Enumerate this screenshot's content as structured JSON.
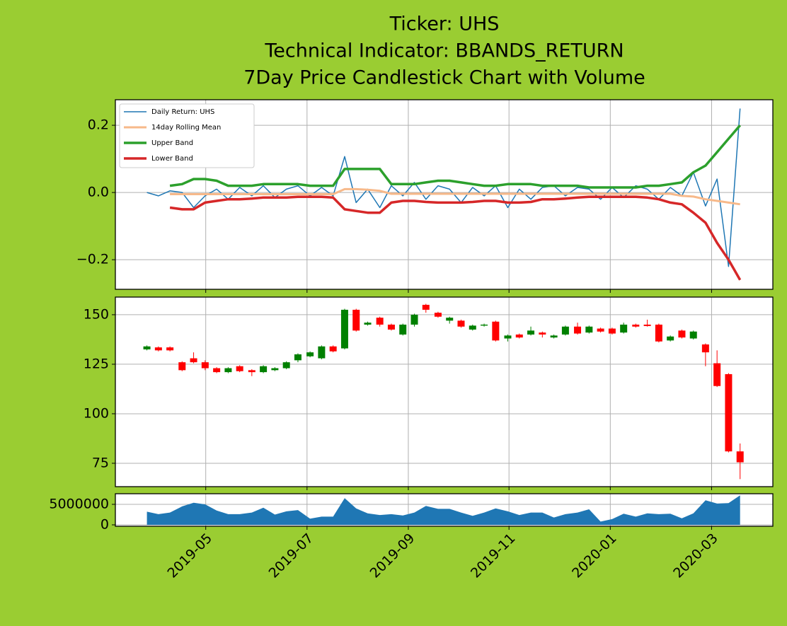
{
  "chart_data": [
    {
      "type": "line",
      "title": [
        "Ticker: UHS",
        "Technical Indicator: BBANDS_RETURN",
        "7Day Price Candlestick Chart with Volume"
      ],
      "x": [
        2019.236,
        2019.255,
        2019.274,
        2019.294,
        2019.313,
        2019.332,
        2019.351,
        2019.37,
        2019.389,
        2019.409,
        2019.428,
        2019.447,
        2019.466,
        2019.485,
        2019.505,
        2019.524,
        2019.543,
        2019.562,
        2019.581,
        2019.6,
        2019.62,
        2019.639,
        2019.658,
        2019.677,
        2019.696,
        2019.716,
        2019.735,
        2019.754,
        2019.773,
        2019.792,
        2019.811,
        2019.831,
        2019.85,
        2019.869,
        2019.888,
        2019.907,
        2019.926,
        2019.946,
        2019.965,
        2019.984,
        2020.003,
        2020.022,
        2020.042,
        2020.061,
        2020.08,
        2020.099,
        2020.118,
        2020.137,
        2020.157,
        2020.176,
        2020.195,
        2020.214
      ],
      "xlim": [
        2019.184,
        2020.268
      ],
      "ylim": [
        -0.288,
        0.276
      ],
      "yticks": [
        {
          "value": -0.2,
          "label": "−0.2"
        },
        {
          "value": 0,
          "label": "0.0"
        },
        {
          "value": 0.2,
          "label": "0.2"
        }
      ],
      "grid": true,
      "legend": "upper left",
      "series": [
        {
          "name": "Daily Return: UHS",
          "color": "#1f77b4",
          "width": 1.5,
          "values": [
            0,
            -0.01,
            0.005,
            0,
            -0.045,
            -0.01,
            0.01,
            -0.02,
            0.015,
            -0.01,
            0.02,
            -0.015,
            0.01,
            0.02,
            -0.01,
            0.015,
            -0.01,
            0.107,
            -0.03,
            0.01,
            -0.045,
            0.02,
            -0.01,
            0.03,
            -0.02,
            0.02,
            0.01,
            -0.03,
            0.015,
            -0.01,
            0.02,
            -0.045,
            0.01,
            -0.02,
            0.015,
            0.02,
            -0.01,
            0.015,
            0.01,
            -0.02,
            0.015,
            -0.015,
            0.02,
            0.01,
            -0.02,
            0.015,
            -0.01,
            0.06,
            -0.04,
            0.04,
            -0.22,
            0.25
          ]
        },
        {
          "name": "14day Rolling Mean",
          "color": "#f7b98a",
          "width": 3,
          "values": [
            null,
            null,
            -0.005,
            -0.005,
            -0.005,
            -0.005,
            -0.005,
            -0.005,
            -0.005,
            -0.005,
            -0.005,
            -0.005,
            -0.005,
            -0.005,
            -0.005,
            -0.005,
            -0.005,
            0.01,
            0.01,
            0.008,
            0.005,
            -0.004,
            -0.004,
            -0.004,
            -0.004,
            -0.004,
            -0.004,
            -0.004,
            -0.004,
            -0.004,
            -0.004,
            -0.004,
            -0.004,
            -0.004,
            -0.004,
            -0.004,
            -0.004,
            -0.004,
            -0.004,
            -0.004,
            -0.004,
            -0.004,
            -0.004,
            -0.004,
            -0.004,
            -0.004,
            -0.01,
            -0.012,
            -0.02,
            -0.025,
            -0.03,
            -0.035
          ]
        },
        {
          "name": "Upper Band",
          "color": "#2ca02c",
          "width": 3.5,
          "values": [
            null,
            null,
            0.02,
            0.025,
            0.04,
            0.04,
            0.035,
            0.02,
            0.02,
            0.02,
            0.025,
            0.025,
            0.025,
            0.025,
            0.02,
            0.02,
            0.02,
            0.07,
            0.07,
            0.07,
            0.07,
            0.025,
            0.025,
            0.025,
            0.03,
            0.035,
            0.035,
            0.03,
            0.025,
            0.02,
            0.02,
            0.025,
            0.025,
            0.025,
            0.02,
            0.02,
            0.02,
            0.02,
            0.015,
            0.015,
            0.015,
            0.015,
            0.015,
            0.02,
            0.02,
            0.025,
            0.03,
            0.06,
            0.08,
            0.12,
            0.16,
            0.2
          ]
        },
        {
          "name": "Lower Band",
          "color": "#d62728",
          "width": 3.5,
          "values": [
            null,
            null,
            -0.045,
            -0.05,
            -0.05,
            -0.03,
            -0.025,
            -0.02,
            -0.02,
            -0.018,
            -0.015,
            -0.015,
            -0.015,
            -0.013,
            -0.013,
            -0.013,
            -0.015,
            -0.05,
            -0.055,
            -0.06,
            -0.06,
            -0.03,
            -0.025,
            -0.025,
            -0.028,
            -0.03,
            -0.03,
            -0.03,
            -0.028,
            -0.025,
            -0.025,
            -0.03,
            -0.03,
            -0.028,
            -0.02,
            -0.02,
            -0.018,
            -0.015,
            -0.013,
            -0.013,
            -0.013,
            -0.013,
            -0.013,
            -0.015,
            -0.02,
            -0.03,
            -0.035,
            -0.06,
            -0.09,
            -0.15,
            -0.2,
            -0.26
          ]
        }
      ]
    },
    {
      "type": "candlestick",
      "x": [
        2019.236,
        2019.255,
        2019.274,
        2019.294,
        2019.313,
        2019.332,
        2019.351,
        2019.37,
        2019.389,
        2019.409,
        2019.428,
        2019.447,
        2019.466,
        2019.485,
        2019.505,
        2019.524,
        2019.543,
        2019.562,
        2019.581,
        2019.6,
        2019.62,
        2019.639,
        2019.658,
        2019.677,
        2019.696,
        2019.716,
        2019.735,
        2019.754,
        2019.773,
        2019.792,
        2019.811,
        2019.831,
        2019.85,
        2019.869,
        2019.888,
        2019.907,
        2019.926,
        2019.946,
        2019.965,
        2019.984,
        2020.003,
        2020.022,
        2020.042,
        2020.061,
        2020.08,
        2020.099,
        2020.118,
        2020.137,
        2020.157,
        2020.176,
        2020.195,
        2020.214
      ],
      "xlim": [
        2019.184,
        2020.268
      ],
      "ylim": [
        63.2,
        158.9
      ],
      "yticks": [
        75,
        100,
        125,
        150
      ],
      "grid": true,
      "up_color": "green",
      "down_color": "red",
      "open": [
        132.5,
        133.5,
        133.5,
        126,
        128,
        126,
        123,
        121,
        124,
        122,
        121,
        122,
        123,
        127,
        129,
        128,
        134,
        133,
        152.5,
        145,
        148.5,
        145,
        140,
        145,
        155,
        151,
        147,
        147,
        142.5,
        144.5,
        146.5,
        138,
        140,
        140,
        141,
        138.5,
        140,
        144,
        141,
        143,
        143,
        141,
        145,
        145,
        145,
        137,
        142,
        138,
        135,
        125.5,
        120,
        81
      ],
      "high": [
        134.5,
        134,
        134,
        126.5,
        131,
        127,
        123.5,
        123.5,
        124.5,
        122.5,
        124.5,
        123.5,
        126.5,
        130.5,
        131.5,
        134.5,
        134.5,
        153,
        153,
        146.5,
        149,
        145.5,
        145.5,
        150.5,
        155.5,
        151.5,
        149,
        147.5,
        145,
        145.5,
        147,
        140,
        140.5,
        144,
        141.5,
        140,
        144.5,
        146,
        144.5,
        143.5,
        143.5,
        146,
        145.5,
        147.5,
        145.5,
        139.5,
        142.5,
        142,
        135.5,
        132,
        120.5,
        85
      ],
      "low": [
        132,
        131.5,
        131.5,
        121.5,
        125.5,
        122,
        120.5,
        120.5,
        121,
        119,
        120.5,
        121.5,
        122.5,
        126,
        128.5,
        127.5,
        131,
        132.5,
        141.5,
        144.5,
        144,
        142,
        139.5,
        144,
        151,
        148.5,
        145.5,
        143.5,
        142,
        144,
        136.5,
        136.5,
        138,
        139.5,
        138.5,
        138,
        139.5,
        140,
        140.5,
        141,
        140,
        140.5,
        143.5,
        144,
        136,
        136.5,
        138,
        137.5,
        124,
        113.5,
        80.5,
        67
      ],
      "close": [
        134,
        132,
        132,
        122,
        126,
        123,
        121,
        123,
        121.5,
        121,
        124,
        123,
        126,
        130,
        131,
        134,
        131.5,
        152.5,
        142,
        146,
        145,
        142.5,
        145,
        150,
        152.5,
        149,
        148.5,
        144,
        144.5,
        145,
        137,
        139.5,
        138.5,
        142,
        140,
        139.5,
        144,
        140.5,
        144,
        141.5,
        140.5,
        145,
        144,
        144.3,
        136.5,
        139,
        138.5,
        141.5,
        131,
        114,
        81,
        75.5
      ]
    },
    {
      "type": "area",
      "x": [
        2019.236,
        2019.255,
        2019.274,
        2019.294,
        2019.313,
        2019.332,
        2019.351,
        2019.37,
        2019.389,
        2019.409,
        2019.428,
        2019.447,
        2019.466,
        2019.485,
        2019.505,
        2019.524,
        2019.543,
        2019.562,
        2019.581,
        2019.6,
        2019.62,
        2019.639,
        2019.658,
        2019.677,
        2019.696,
        2019.716,
        2019.735,
        2019.754,
        2019.773,
        2019.792,
        2019.811,
        2019.831,
        2019.85,
        2019.869,
        2019.888,
        2019.907,
        2019.926,
        2019.946,
        2019.965,
        2019.984,
        2020.003,
        2020.022,
        2020.042,
        2020.061,
        2020.08,
        2020.099,
        2020.118,
        2020.137,
        2020.157,
        2020.176,
        2020.195,
        2020.214
      ],
      "xlim": [
        2019.184,
        2020.268
      ],
      "xticks": [
        {
          "value": 2019.333,
          "label": "2019-05"
        },
        {
          "value": 2019.5,
          "label": "2019-07"
        },
        {
          "value": 2019.667,
          "label": "2019-09"
        },
        {
          "value": 2019.833,
          "label": "2019-11"
        },
        {
          "value": 2020.0,
          "label": "2020-01"
        },
        {
          "value": 2020.167,
          "label": "2020-03"
        }
      ],
      "ylim": [
        -345000,
        7590000
      ],
      "yticks": [
        0,
        5000000
      ],
      "grid": true,
      "color": "#1f77b4",
      "values": [
        3200000,
        2600000,
        3000000,
        4500000,
        5400000,
        5000000,
        3500000,
        2600000,
        2600000,
        3000000,
        4200000,
        2500000,
        3300000,
        3600000,
        1500000,
        2000000,
        2000000,
        6500000,
        4000000,
        2800000,
        2400000,
        2600000,
        2300000,
        3000000,
        4600000,
        3900000,
        3900000,
        3000000,
        2200000,
        3000000,
        4000000,
        3300000,
        2400000,
        3000000,
        3000000,
        1800000,
        2600000,
        3000000,
        3800000,
        800000,
        1400000,
        2700000,
        2000000,
        2800000,
        2600000,
        2700000,
        1600000,
        2800000,
        6000000,
        5200000,
        5300000,
        7200000
      ]
    }
  ]
}
